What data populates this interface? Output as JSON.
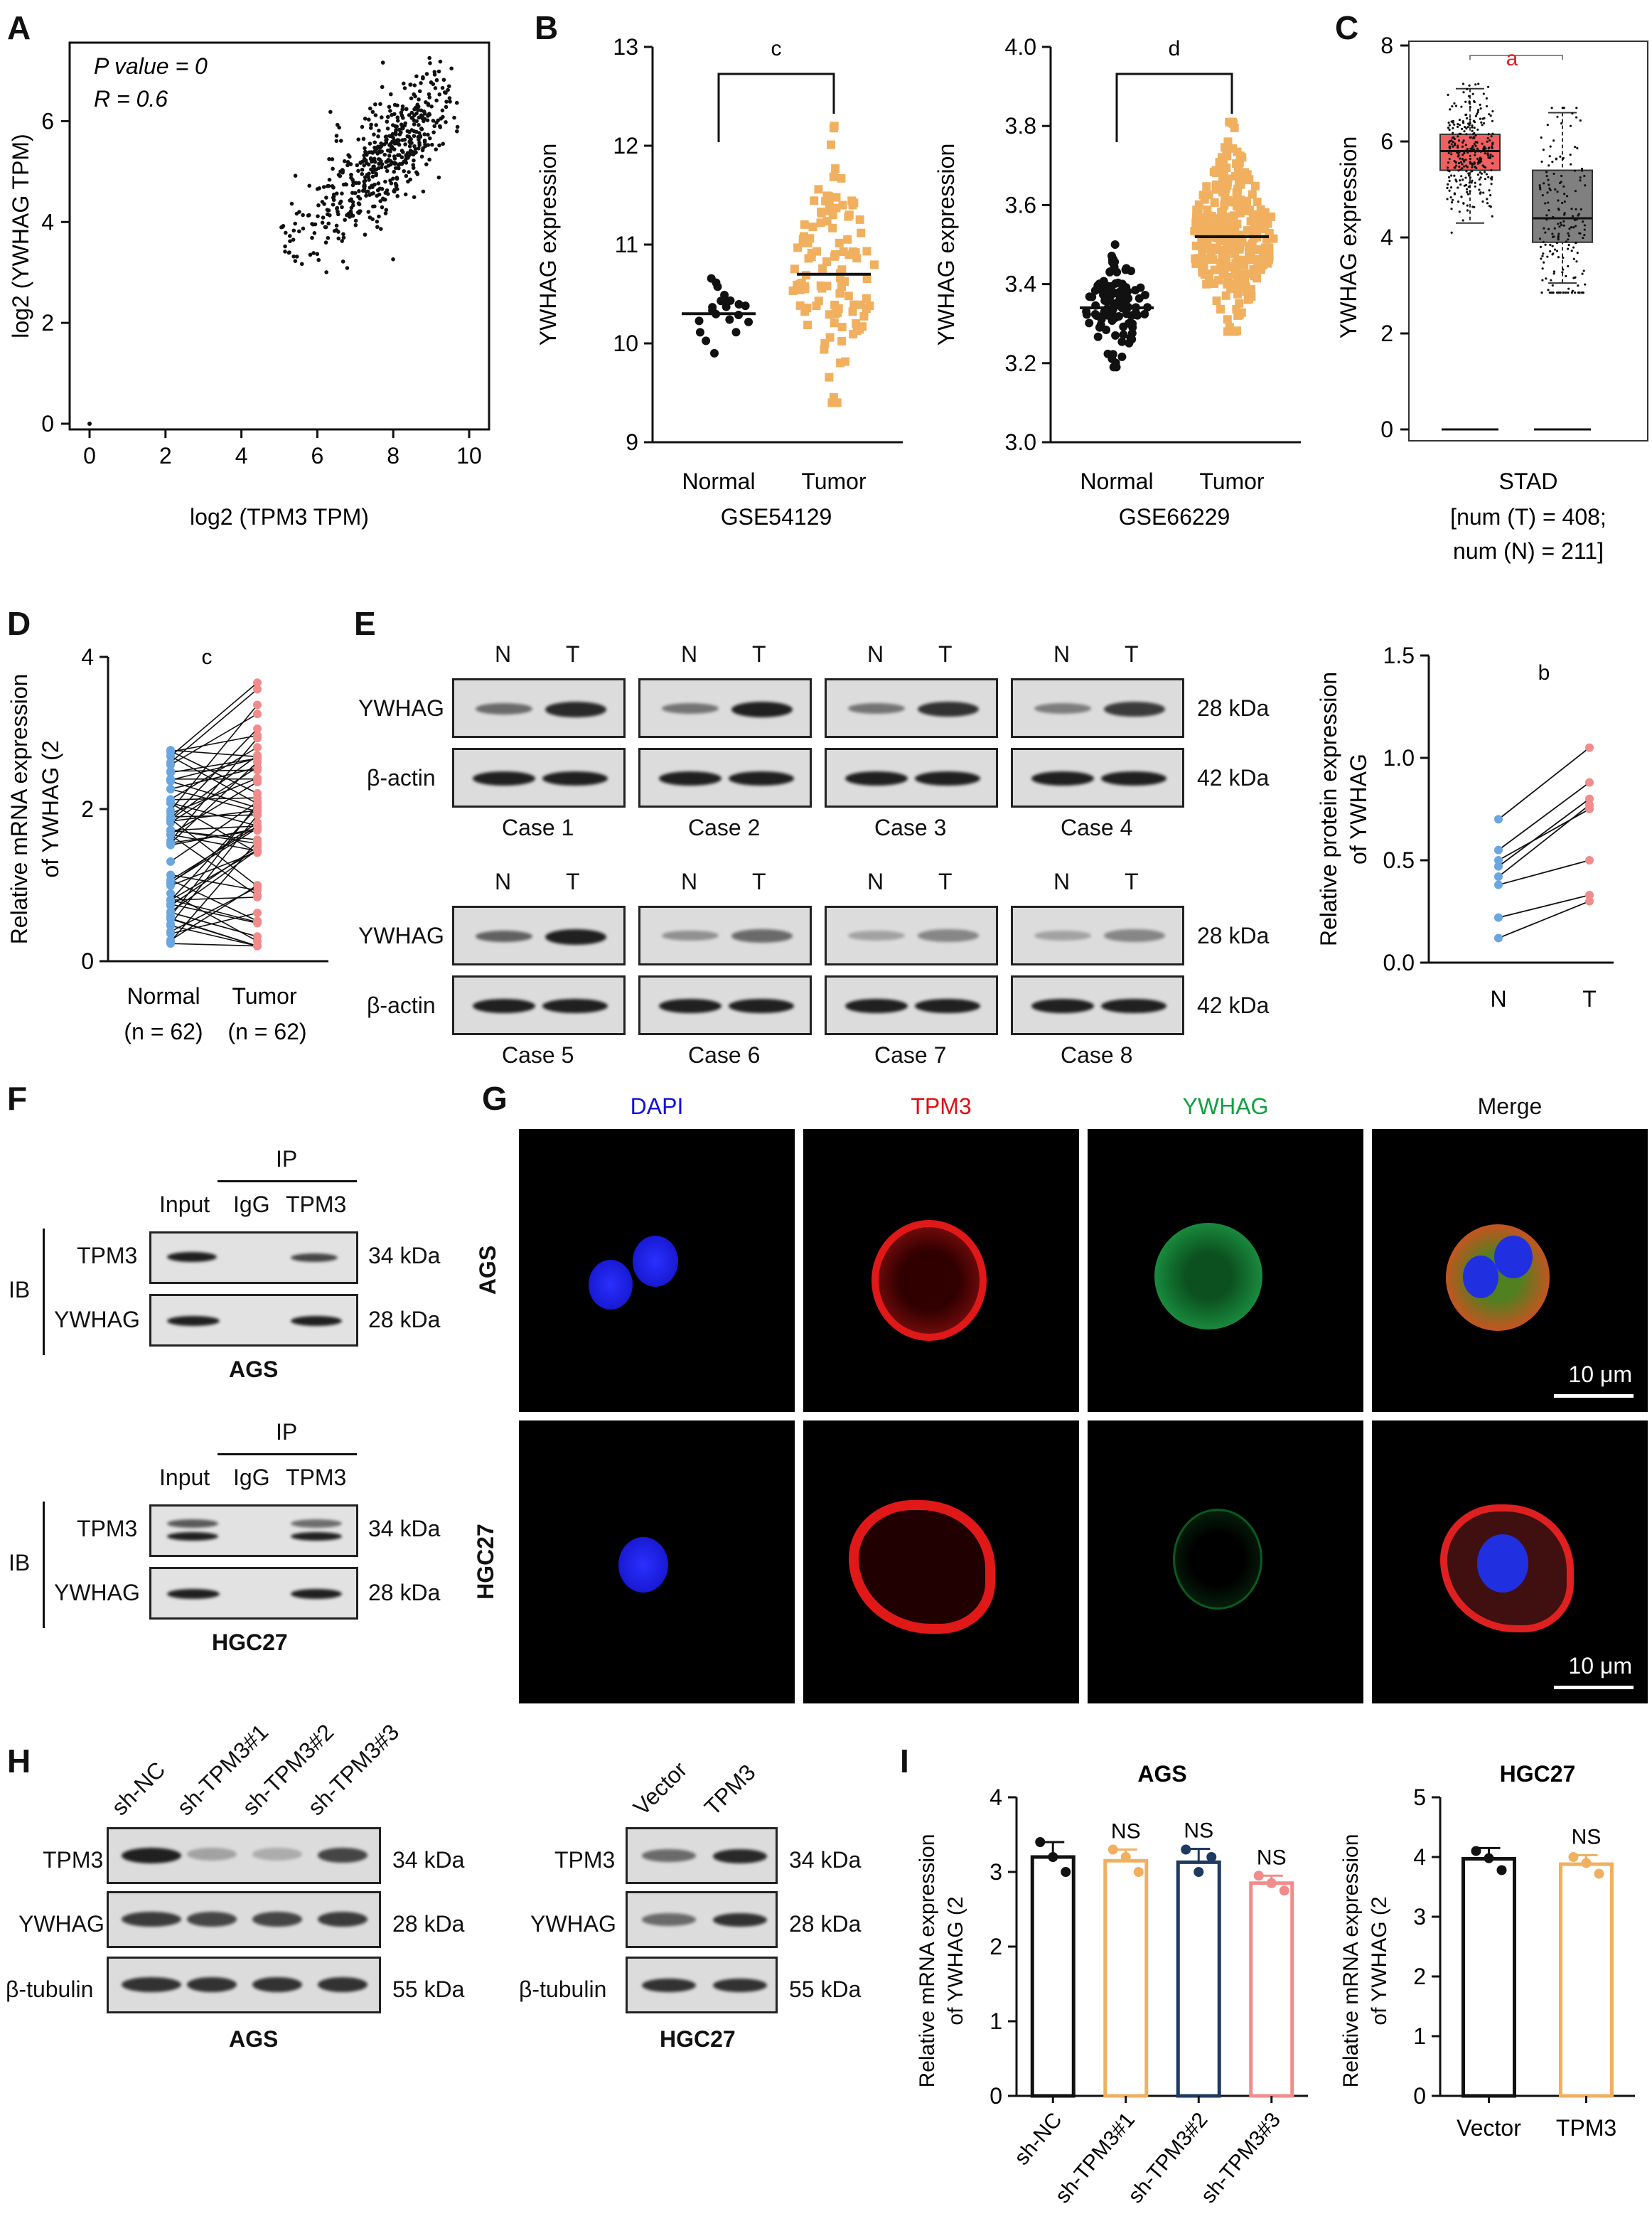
{
  "panels": {
    "A": {
      "letter": "A",
      "stat_p": "P value = 0",
      "stat_r": "R = 0.6",
      "xlabel": "log2 (TPM3 TPM)",
      "ylabel": "log2 (YWHAG TPM)"
    },
    "B": {
      "letter": "B",
      "left": {
        "dataset": "GSE54129",
        "ylabel": "YWHAG expression",
        "sig": "c",
        "groups": [
          "Normal",
          "Tumor"
        ]
      },
      "right": {
        "dataset": "GSE66229",
        "ylabel": "YWHAG expression",
        "sig": "d",
        "groups": [
          "Normal",
          "Tumor"
        ]
      }
    },
    "C": {
      "letter": "C",
      "ylabel": "YWHAG expression",
      "sig": "a",
      "cancer": "STAD",
      "num_t": "[num (T) = 408;",
      "num_n": "num (N) = 211]"
    },
    "D": {
      "letter": "D",
      "ylabel_1": "Relative mRNA expression",
      "ylabel_2": "of YWHAG (2",
      "sig": "c",
      "groups": [
        "Normal",
        "Tumor"
      ],
      "n_normal": "(n = 62)",
      "n_tumor": "(n = 62)"
    },
    "E": {
      "letter": "E",
      "lane_n": "N",
      "lane_t": "T",
      "row_ywhag": "YWHAG",
      "row_actin": "β-actin",
      "kda_28": "28 kDa",
      "kda_42": "42 kDa",
      "cases": [
        "Case 1",
        "Case 2",
        "Case 3",
        "Case 4",
        "Case 5",
        "Case 6",
        "Case 7",
        "Case 8"
      ],
      "graph_ylabel_1": "Relative protein expression",
      "graph_ylabel_2": "of YWHAG",
      "graph_sig": "b"
    },
    "F": {
      "letter": "F",
      "ip": "IP",
      "ib": "IB",
      "lanes": [
        "Input",
        "IgG",
        "TPM3"
      ],
      "row_tpm3": "TPM3",
      "row_ywhag": "YWHAG",
      "kda_34": "34 kDa",
      "kda_28": "28 kDa",
      "cell_1": "AGS",
      "cell_2": "HGC27"
    },
    "G": {
      "letter": "G",
      "channels": [
        "DAPI",
        "TPM3",
        "YWHAG",
        "Merge"
      ],
      "rows": [
        "AGS",
        "HGC27"
      ],
      "scale": "10 μm",
      "channel_colors": {
        "DAPI": "#1010e0",
        "TPM3": "#e01010",
        "YWHAG": "#10a040",
        "Merge": "#111111"
      }
    },
    "H": {
      "letter": "H",
      "left_lanes": [
        "sh-NC",
        "sh-TPM3#1",
        "sh-TPM3#2",
        "sh-TPM3#3"
      ],
      "right_lanes": [
        "Vector",
        "TPM3"
      ],
      "rows": [
        "TPM3",
        "YWHAG",
        "β-tubulin"
      ],
      "kdas": [
        "34 kDa",
        "28 kDa",
        "55 kDa"
      ],
      "cell_1": "AGS",
      "cell_2": "HGC27"
    },
    "I": {
      "letter": "I",
      "title_1": "AGS",
      "title_2": "HGC27",
      "ylabel_1": "Relative mRNA expression",
      "ylabel_2": "of YWHAG (2",
      "ns": "NS",
      "groups_1": [
        "sh-NC",
        "sh-TPM3#1",
        "sh-TPM3#2",
        "sh-TPM3#3"
      ],
      "groups_2": [
        "Vector",
        "TPM3"
      ]
    }
  },
  "chart_data": [
    {
      "panel": "A",
      "type": "scatter",
      "xlabel": "log2 (TPM3 TPM)",
      "ylabel": "log2 (YWHAG TPM)",
      "xlim": [
        0,
        10
      ],
      "ylim": [
        0,
        7.5
      ],
      "xticks": [
        0,
        2,
        4,
        6,
        8,
        10
      ],
      "yticks": [
        0,
        2,
        4,
        6
      ],
      "clusters": [
        {
          "x_mean": 8.2,
          "y_mean": 5.6,
          "n": 420
        },
        {
          "x_mean": 6.6,
          "y_mean": 4.3,
          "n": 160
        }
      ],
      "outlier": [
        0,
        0
      ]
    },
    {
      "panel": "B-left",
      "type": "scatter",
      "xlabel": "GSE54129",
      "ylabel": "YWHAG expression",
      "ylim": [
        9,
        13
      ],
      "yticks": [
        9,
        10,
        11,
        12,
        13
      ],
      "categories": [
        "Normal",
        "Tumor"
      ],
      "color": [
        "#111111",
        "#f0b060"
      ],
      "medians": [
        10.3,
        10.7
      ],
      "n": [
        21,
        111
      ],
      "range_tumor": [
        9.4,
        12.2
      ],
      "range_normal": [
        9.9,
        10.8
      ]
    },
    {
      "panel": "B-right",
      "type": "scatter",
      "xlabel": "GSE66229",
      "ylabel": "YWHAG expression",
      "ylim": [
        3.0,
        4.0
      ],
      "yticks": [
        3.0,
        3.2,
        3.4,
        3.6,
        3.8,
        4.0
      ],
      "categories": [
        "Normal",
        "Tumor"
      ],
      "color": [
        "#111111",
        "#f0b060"
      ],
      "medians": [
        3.34,
        3.52
      ],
      "n": [
        100,
        300
      ],
      "range_tumor": [
        3.28,
        3.81
      ],
      "range_normal": [
        3.19,
        3.5
      ]
    },
    {
      "panel": "C",
      "type": "bar",
      "ylabel": "YWHAG expression",
      "ylim": [
        0,
        8
      ],
      "yticks": [
        0,
        2,
        4,
        6,
        8
      ],
      "series": [
        {
          "name": "T",
          "color": "#f06060",
          "q1": 5.4,
          "median": 5.8,
          "q3": 6.15,
          "min": 4.3,
          "max": 7.1
        },
        {
          "name": "N",
          "color": "#808080",
          "q1": 3.9,
          "median": 4.4,
          "q3": 5.4,
          "min": 3.05,
          "max": 6.6
        }
      ]
    },
    {
      "panel": "D",
      "type": "line",
      "ylim": [
        0,
        4
      ],
      "yticks": [
        0,
        2,
        4
      ],
      "categories": [
        "Normal",
        "Tumor"
      ],
      "colors": [
        "#6aa6e0",
        "#f28b8b"
      ],
      "n": 62,
      "normal_range": [
        0.1,
        2.8
      ],
      "tumor_range": [
        0.2,
        3.8
      ]
    },
    {
      "panel": "E-graph",
      "type": "line",
      "ylim": [
        0,
        1.5
      ],
      "yticks": [
        0.0,
        0.5,
        1.0,
        1.5
      ],
      "categories": [
        "N",
        "T"
      ],
      "colors": [
        "#6aa6e0",
        "#f28b8b"
      ],
      "pairs": [
        [
          0.7,
          1.05
        ],
        [
          0.55,
          0.88
        ],
        [
          0.47,
          0.8
        ],
        [
          0.42,
          0.77
        ],
        [
          0.38,
          0.5
        ],
        [
          0.22,
          0.33
        ],
        [
          0.12,
          0.3
        ],
        [
          0.5,
          0.75
        ]
      ]
    },
    {
      "panel": "I-AGS",
      "type": "bar",
      "ylim": [
        0,
        4
      ],
      "yticks": [
        0,
        1,
        2,
        3,
        4
      ],
      "categories": [
        "sh-NC",
        "sh-TPM3#1",
        "sh-TPM3#2",
        "sh-TPM3#3"
      ],
      "values": [
        3.2,
        3.15,
        3.13,
        2.85
      ],
      "errors": [
        0.2,
        0.15,
        0.18,
        0.1
      ],
      "colors": [
        "#111111",
        "#f0b060",
        "#1f3a60",
        "#f28b8b"
      ],
      "points": [
        [
          3.4,
          3.2,
          3.0
        ],
        [
          3.3,
          3.2,
          3.0
        ],
        [
          3.3,
          3.0,
          3.2
        ],
        [
          2.95,
          2.85,
          2.75
        ]
      ],
      "labels": [
        "",
        "NS",
        "NS",
        "NS"
      ]
    },
    {
      "panel": "I-HGC27",
      "type": "bar",
      "ylim": [
        0,
        5
      ],
      "yticks": [
        0,
        1,
        2,
        3,
        4,
        5
      ],
      "categories": [
        "Vector",
        "TPM3"
      ],
      "values": [
        3.97,
        3.88
      ],
      "errors": [
        0.18,
        0.15
      ],
      "colors": [
        "#111111",
        "#f0b060"
      ],
      "points": [
        [
          4.1,
          3.98,
          3.78
        ],
        [
          4.0,
          3.9,
          3.72
        ]
      ],
      "labels": [
        "",
        "NS"
      ]
    }
  ]
}
